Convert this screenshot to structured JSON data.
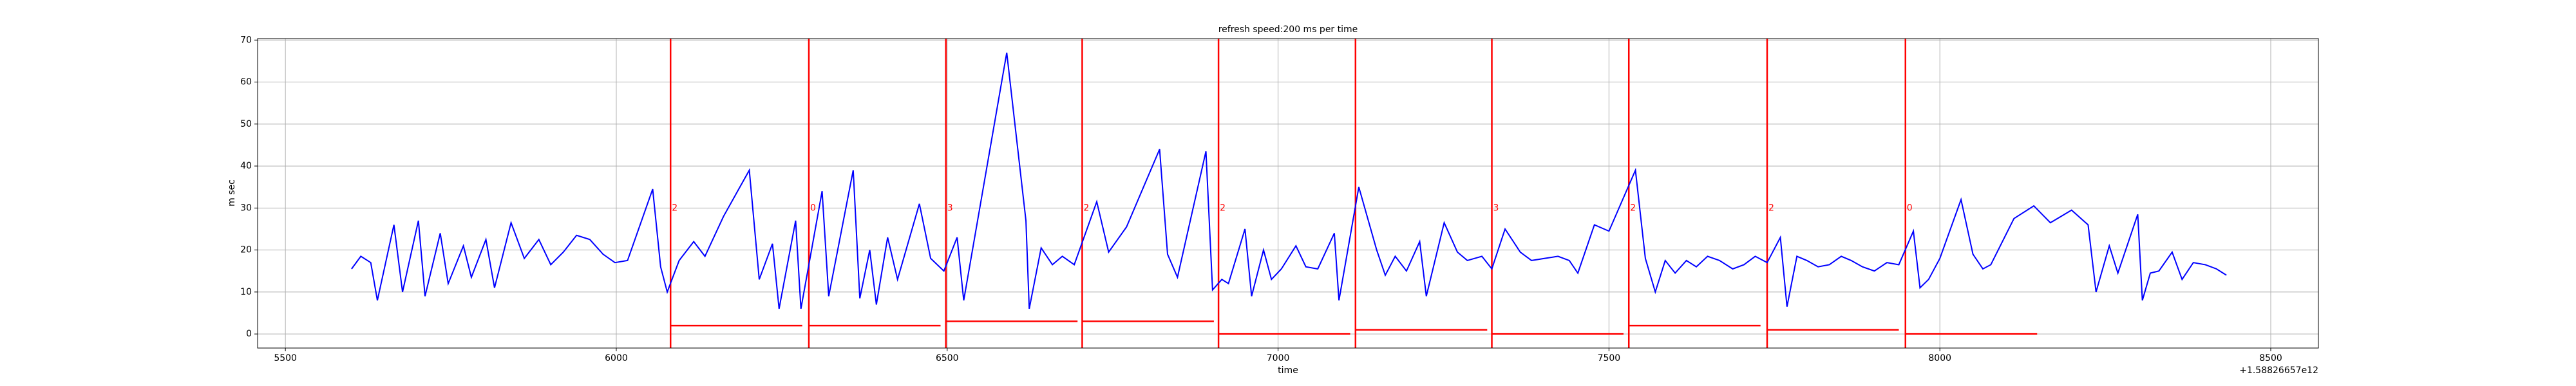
{
  "chart_data": {
    "type": "line",
    "title": "refresh speed:200 ms per time",
    "xlabel": "time",
    "ylabel": "m sec",
    "x_offset_label": "+1.58826657e12",
    "grid": true,
    "xlim": [
      5458,
      8572
    ],
    "ylim": [
      -3.35,
      70.35
    ],
    "xticks": [
      5500,
      6000,
      6500,
      7000,
      7500,
      8000,
      8500
    ],
    "yticks": [
      0,
      10,
      20,
      30,
      40,
      50,
      60,
      70
    ],
    "series": [
      {
        "color": "#0000ff",
        "x": [
          5600,
          5614,
          5629,
          5639,
          5664,
          5677,
          5701,
          5711,
          5734,
          5746,
          5769,
          5781,
          5803,
          5816,
          5841,
          5861,
          5883,
          5901,
          5920,
          5940,
          5960,
          5980,
          5998,
          6017,
          6055,
          6067,
          6077,
          6095,
          6117,
          6134,
          6162,
          6201,
          6216,
          6236,
          6246,
          6271,
          6279,
          6311,
          6321,
          6358,
          6368,
          6383,
          6393,
          6410,
          6425,
          6458,
          6475,
          6495,
          6515,
          6525,
          6590,
          6619,
          6624,
          6642,
          6659,
          6674,
          6692,
          6726,
          6744,
          6771,
          6821,
          6833,
          6848,
          6891,
          6901,
          6915,
          6925,
          6950,
          6960,
          6978,
          6990,
          7005,
          7027,
          7042,
          7060,
          7085,
          7092,
          7122,
          7149,
          7162,
          7177,
          7194,
          7214,
          7224,
          7251,
          7271,
          7286,
          7308,
          7323,
          7343,
          7366,
          7383,
          7403,
          7423,
          7440,
          7453,
          7478,
          7500,
          7540,
          7555,
          7570,
          7585,
          7600,
          7617,
          7632,
          7649,
          7667,
          7687,
          7704,
          7721,
          7739,
          7759,
          7769,
          7784,
          7799,
          7816,
          7833,
          7851,
          7866,
          7883,
          7901,
          7920,
          7938,
          7960,
          7970,
          7983,
          8000,
          8032,
          8050,
          8065,
          8077,
          8112,
          8142,
          8167,
          8199,
          8224,
          8236,
          8256,
          8269,
          8299,
          8306,
          8318,
          8331,
          8351,
          8366,
          8383,
          8401,
          8418,
          8433
        ],
        "values": [
          15.5,
          18.5,
          17,
          8,
          26,
          10,
          27,
          9,
          24,
          12,
          21,
          13.5,
          22.5,
          11,
          26.5,
          18,
          22.5,
          16.5,
          19.5,
          23.5,
          22.5,
          19,
          17,
          17.5,
          34.5,
          16,
          10,
          17.5,
          22,
          18.5,
          28,
          39,
          13,
          21.5,
          6,
          27,
          6,
          34,
          9,
          39,
          8.5,
          20,
          7,
          23,
          13,
          31,
          18,
          15,
          23,
          8,
          67,
          27,
          6,
          20.5,
          16.5,
          18.5,
          16.5,
          31.5,
          19.5,
          25.5,
          44,
          19,
          13.5,
          43.5,
          10.5,
          13,
          12,
          25,
          9,
          20,
          13,
          15.5,
          21,
          16,
          15.5,
          24,
          8,
          35,
          20,
          14,
          18.5,
          15,
          22,
          9,
          26.5,
          19.5,
          17.5,
          18.5,
          15.5,
          25,
          19.5,
          17.5,
          18,
          18.5,
          17.5,
          14.5,
          26,
          24.5,
          39,
          18,
          10,
          17.5,
          14.5,
          17.5,
          16,
          18.5,
          17.5,
          15.5,
          16.5,
          18.5,
          17,
          23,
          6.5,
          18.5,
          17.5,
          16,
          16.5,
          18.5,
          17.5,
          16,
          15,
          17,
          16.5,
          24.5,
          11,
          13,
          18,
          32,
          19,
          15.5,
          16.5,
          27.5,
          30.5,
          26.5,
          29.5,
          26,
          10,
          21,
          14.5,
          28.5,
          8,
          14.5,
          15,
          19.5,
          13,
          17,
          16.5,
          15.5,
          14
        ]
      }
    ],
    "vlines": {
      "color": "#ff0000",
      "x": [
        6082,
        6291,
        6498,
        6704,
        6910,
        7117,
        7323,
        7530,
        7739,
        7948
      ]
    },
    "segments": {
      "color": "#ff0000",
      "x0": [
        6082,
        6291,
        6498,
        6704,
        6910,
        7117,
        7323,
        7530,
        7739,
        7948
      ],
      "x1": [
        6281,
        6490,
        6697,
        6903,
        7109,
        7316,
        7522,
        7729,
        7938,
        8147
      ],
      "values": [
        2,
        2,
        3,
        3,
        0,
        1,
        0,
        2,
        1,
        0
      ]
    },
    "annotations": {
      "color": "#ff0000",
      "x": [
        6082,
        6291,
        6498,
        6704,
        6910,
        7323,
        7530,
        7739,
        7948
      ],
      "y": [
        30,
        30,
        30,
        30,
        30,
        30,
        30,
        30,
        30
      ],
      "texts": [
        "2",
        "0",
        "3",
        "2",
        "2",
        "3",
        "2",
        "2",
        "0"
      ]
    }
  }
}
